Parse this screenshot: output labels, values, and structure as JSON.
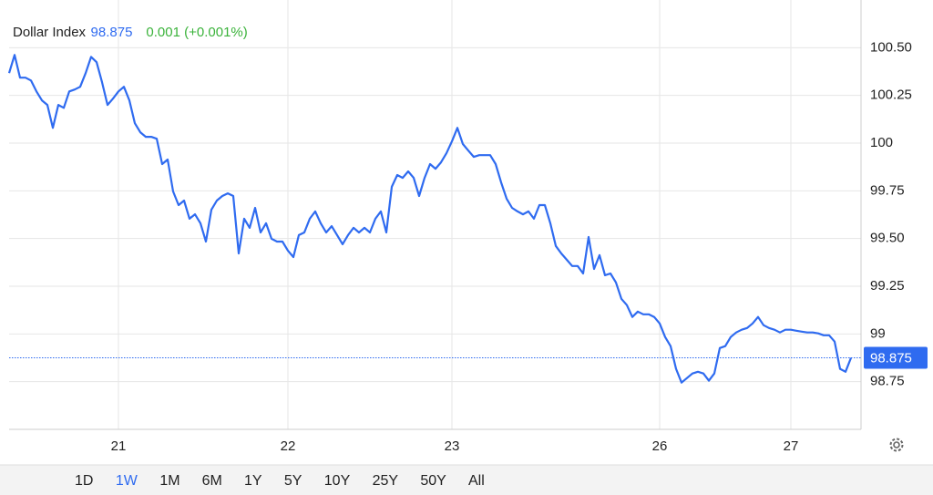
{
  "chart_data": {
    "type": "line",
    "title": "Dollar Index",
    "change_label": "0.001 (+0.001%)",
    "categories": [
      null,
      null,
      null,
      null,
      null,
      null,
      null,
      null,
      null,
      null,
      null,
      null,
      null,
      null,
      null,
      null,
      null,
      null,
      null,
      null,
      "21",
      null,
      null,
      null,
      null,
      null,
      null,
      null,
      null,
      null,
      null,
      null,
      null,
      null,
      null,
      null,
      null,
      null,
      null,
      null,
      null,
      null,
      null,
      null,
      null,
      null,
      null,
      null,
      null,
      null,
      null,
      "22",
      null,
      null,
      null,
      null,
      null,
      null,
      null,
      null,
      null,
      null,
      null,
      null,
      null,
      null,
      null,
      null,
      null,
      null,
      null,
      null,
      null,
      null,
      null,
      null,
      null,
      null,
      null,
      null,
      null,
      "23",
      null,
      null,
      null,
      null,
      null,
      null,
      null,
      null,
      null,
      null,
      null,
      null,
      null,
      null,
      null,
      null,
      null,
      null,
      null,
      null,
      null,
      null,
      null,
      null,
      null,
      null,
      null,
      null,
      null,
      null,
      null,
      null,
      null,
      null,
      null,
      null,
      null,
      "26",
      null,
      null,
      null,
      null,
      null,
      null,
      null,
      null,
      null,
      null,
      null,
      null,
      null,
      null,
      null,
      null,
      null,
      null,
      null,
      null,
      null,
      null,
      null,
      "27",
      null,
      null,
      null,
      null,
      null,
      null,
      null,
      null,
      null,
      null,
      null
    ],
    "series": [
      {
        "name": "Dollar Index",
        "color": "#2f6bf0",
        "values": [
          100.367,
          100.462,
          100.343,
          100.343,
          100.328,
          100.271,
          100.224,
          100.2,
          100.08,
          100.2,
          100.185,
          100.271,
          100.281,
          100.295,
          100.367,
          100.452,
          100.424,
          100.319,
          100.2,
          100.233,
          100.271,
          100.295,
          100.224,
          100.104,
          100.057,
          100.033,
          100.033,
          100.023,
          99.89,
          99.914,
          99.747,
          99.675,
          99.699,
          99.604,
          99.627,
          99.58,
          99.484,
          99.651,
          99.699,
          99.723,
          99.737,
          99.723,
          99.422,
          99.604,
          99.556,
          99.661,
          99.532,
          99.58,
          99.499,
          99.484,
          99.484,
          99.437,
          99.403,
          99.518,
          99.532,
          99.604,
          99.642,
          99.58,
          99.532,
          99.565,
          99.518,
          99.47,
          99.518,
          99.556,
          99.532,
          99.556,
          99.532,
          99.604,
          99.642,
          99.532,
          99.771,
          99.833,
          99.818,
          99.852,
          99.818,
          99.723,
          99.818,
          99.89,
          99.866,
          99.899,
          99.947,
          100.009,
          100.08,
          99.995,
          99.961,
          99.928,
          99.937,
          99.937,
          99.937,
          99.89,
          99.794,
          99.709,
          99.661,
          99.642,
          99.627,
          99.642,
          99.604,
          99.675,
          99.675,
          99.58,
          99.461,
          99.422,
          99.389,
          99.356,
          99.356,
          99.317,
          99.508,
          99.341,
          99.413,
          99.308,
          99.317,
          99.27,
          99.184,
          99.151,
          99.089,
          99.117,
          99.103,
          99.103,
          99.089,
          99.055,
          98.984,
          98.936,
          98.817,
          98.745,
          98.769,
          98.793,
          98.802,
          98.793,
          98.755,
          98.793,
          98.926,
          98.936,
          98.984,
          99.008,
          99.022,
          99.031,
          99.055,
          99.089,
          99.046,
          99.031,
          99.022,
          99.008,
          99.022,
          99.022,
          99.017,
          99.012,
          99.008,
          99.008,
          99.003,
          98.993,
          98.993,
          98.96,
          98.817,
          98.802,
          98.875
        ]
      }
    ],
    "ylim": [
      98.5,
      100.75
    ],
    "yticks": [
      98.75,
      99,
      99.25,
      {
        "value": 99.5,
        "label": "99.50"
      },
      99.75,
      100,
      100.25,
      {
        "value": 100.5,
        "label": "100.50"
      }
    ],
    "grid": true,
    "ranges": [
      "1D",
      "1W",
      "1M",
      "6M",
      "1Y",
      "5Y",
      "10Y",
      "25Y",
      "50Y",
      "All"
    ],
    "selected_range": 1,
    "change_color": "#3bb33b"
  }
}
